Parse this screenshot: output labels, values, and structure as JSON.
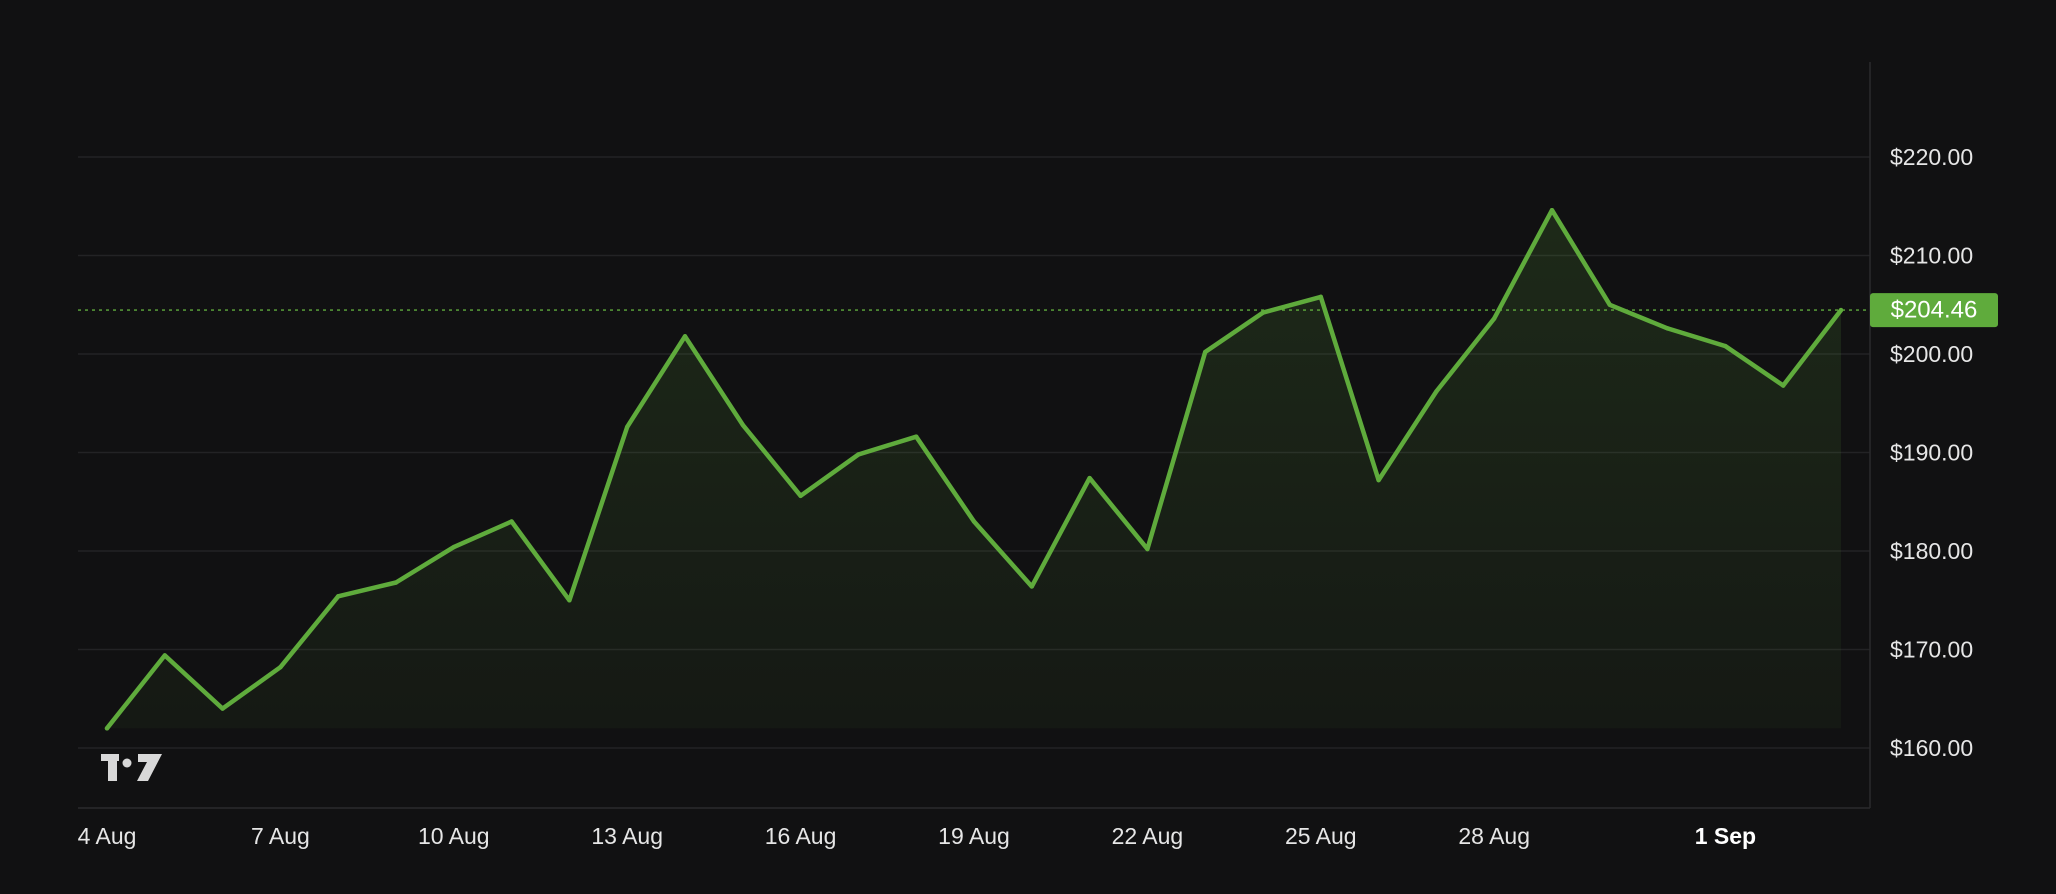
{
  "chart_data": {
    "type": "area",
    "title": "",
    "xlabel": "",
    "ylabel": "",
    "currency": "$",
    "ylim": [
      154,
      226
    ],
    "xlim": [
      "2024-08-04",
      "2024-09-03"
    ],
    "grid": true,
    "legend": "none",
    "y_ticks": [
      160,
      170,
      180,
      190,
      200,
      210,
      220
    ],
    "y_tick_labels": [
      "$160.00",
      "$170.00",
      "$180.00",
      "$190.00",
      "$200.00",
      "$210.00",
      "$220.00"
    ],
    "x_ticks": [
      "2024-08-04",
      "2024-08-07",
      "2024-08-10",
      "2024-08-13",
      "2024-08-16",
      "2024-08-19",
      "2024-08-22",
      "2024-08-25",
      "2024-08-28",
      "2024-09-01"
    ],
    "x_tick_labels": [
      "4 Aug",
      "7 Aug",
      "10 Aug",
      "13 Aug",
      "16 Aug",
      "19 Aug",
      "22 Aug",
      "25 Aug",
      "28 Aug",
      "1 Sep"
    ],
    "x_tick_bold": [
      false,
      false,
      false,
      false,
      false,
      false,
      false,
      false,
      false,
      true
    ],
    "series": [
      {
        "x": [
          "2024-08-04",
          "2024-08-05",
          "2024-08-06",
          "2024-08-07",
          "2024-08-08",
          "2024-08-09",
          "2024-08-10",
          "2024-08-11",
          "2024-08-12",
          "2024-08-13",
          "2024-08-14",
          "2024-08-15",
          "2024-08-16",
          "2024-08-17",
          "2024-08-18",
          "2024-08-19",
          "2024-08-20",
          "2024-08-21",
          "2024-08-22",
          "2024-08-23",
          "2024-08-24",
          "2024-08-25",
          "2024-08-26",
          "2024-08-27",
          "2024-08-28",
          "2024-08-29",
          "2024-08-30",
          "2024-08-31",
          "2024-09-01",
          "2024-09-02",
          "2024-09-03"
        ],
        "values": [
          162.0,
          169.4,
          164.0,
          168.2,
          175.4,
          176.8,
          180.4,
          183.0,
          175.0,
          192.6,
          201.8,
          192.8,
          185.6,
          189.8,
          191.6,
          183.0,
          176.4,
          187.4,
          180.2,
          200.2,
          204.2,
          205.8,
          187.2,
          196.2,
          203.6,
          214.6,
          205.0,
          202.6,
          200.8,
          196.8,
          204.46
        ]
      }
    ],
    "last_price_label": "$204.46",
    "colors": {
      "background": "#111112",
      "line": "#5fab3c",
      "grid": "#232325",
      "axis": "#2a2a2c",
      "label": "#e6e6e6",
      "price_badge": "#5fab3c",
      "logo": "#d8d8d8"
    },
    "watermark_logo": "tradingview-logo"
  }
}
